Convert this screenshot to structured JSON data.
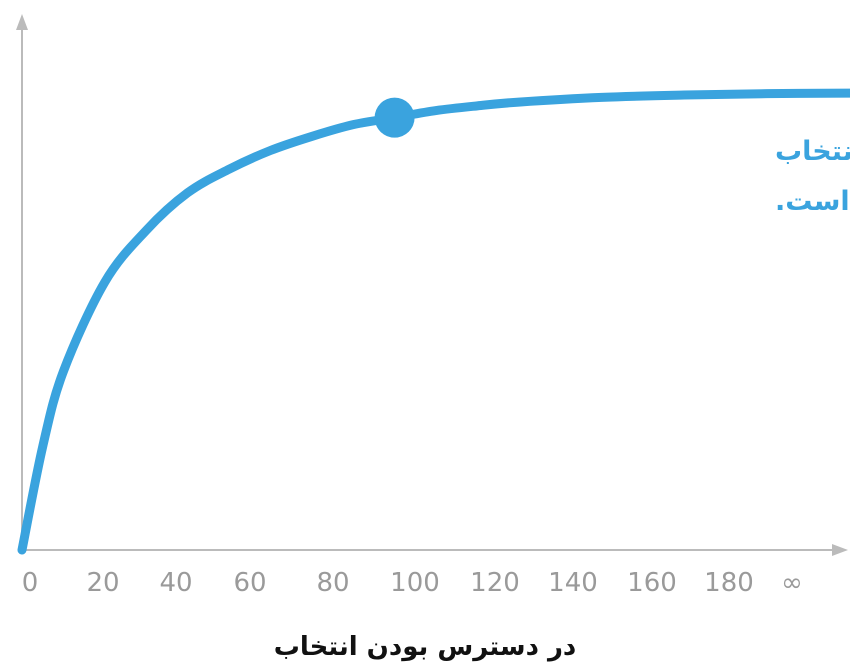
{
  "chart_data": {
    "type": "line",
    "title": "",
    "xlabel": "در دسترس بودن انتخاب",
    "ylabel": "",
    "x_tick_labels": [
      "0",
      "20",
      "40",
      "60",
      "80",
      "100",
      "120",
      "140",
      "160",
      "180",
      "∞"
    ],
    "xlim": [
      0,
      200
    ],
    "ylim": [
      0,
      100
    ],
    "grid": false,
    "series": [
      {
        "x": [
          0,
          5,
          10,
          20,
          30,
          40,
          50,
          60,
          70,
          80,
          90,
          100,
          110,
          120,
          140,
          160,
          180,
          200
        ],
        "y": [
          0,
          22,
          38,
          57,
          68,
          76,
          81,
          85,
          88,
          90.5,
          92,
          93.5,
          94.5,
          95.3,
          96.3,
          96.8,
          97.1,
          97.2
        ]
      }
    ],
    "highlight_point": {
      "x": 90,
      "y": 92
    },
    "annotation_lines": [
      "مصرف کننده امروزی از انتخاب",
      "گسترده موسیقی رضایتمند است."
    ],
    "colors": {
      "curve": "#3aa3de",
      "axis": "#bbbbbb",
      "tick_text": "#9a9a9a",
      "annotation": "#3aa3de",
      "xlabel": "#111111"
    }
  }
}
